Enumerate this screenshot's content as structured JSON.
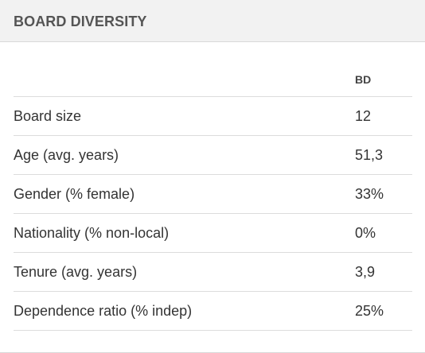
{
  "panel": {
    "title": "BOARD DIVERSITY"
  },
  "table": {
    "column_header": "BD",
    "rows": [
      {
        "label": "Board size",
        "value": "12"
      },
      {
        "label": "Age (avg. years)",
        "value": "51,3"
      },
      {
        "label": "Gender (% female)",
        "value": "33%"
      },
      {
        "label": "Nationality (% non-local)",
        "value": "0%"
      },
      {
        "label": "Tenure (avg. years)",
        "value": "3,9"
      },
      {
        "label": "Dependence ratio (% indep)",
        "value": "25%"
      }
    ]
  }
}
